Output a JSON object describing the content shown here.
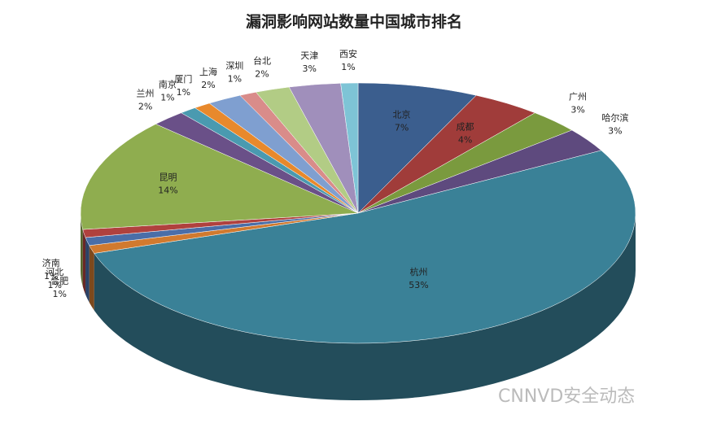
{
  "chart_data": {
    "type": "pie3d",
    "title": "漏洞影响网站数量中国城市排名",
    "categories": [
      "北京",
      "成都",
      "广州",
      "哈尔滨",
      "杭州",
      "合肥",
      "河北",
      "济南",
      "昆明",
      "兰州",
      "南京",
      "厦门",
      "上海",
      "深圳",
      "台北",
      "天津",
      "西安"
    ],
    "values": [
      7,
      4,
      3,
      3,
      53,
      1,
      1,
      1,
      14,
      2,
      1,
      1,
      2,
      1,
      2,
      3,
      1
    ],
    "value_labels": [
      "7%",
      "4%",
      "3%",
      "3%",
      "53%",
      "1%",
      "1%",
      "1%",
      "14%",
      "2%",
      "1%",
      "1%",
      "2%",
      "1%",
      "2%",
      "3%",
      "1%"
    ],
    "colors": [
      "#3b5e8e",
      "#a03c3a",
      "#7a9a3e",
      "#5e4a7e",
      "#3a8197",
      "#d17a2f",
      "#4a6ea8",
      "#b0413e",
      "#8fad4f",
      "#6a5088",
      "#4a9ab0",
      "#e8892c",
      "#7f9fd0",
      "#d98c8a",
      "#b2cc85",
      "#a08fbb",
      "#7ec4d6"
    ]
  },
  "watermark": "CNNVD安全动态"
}
